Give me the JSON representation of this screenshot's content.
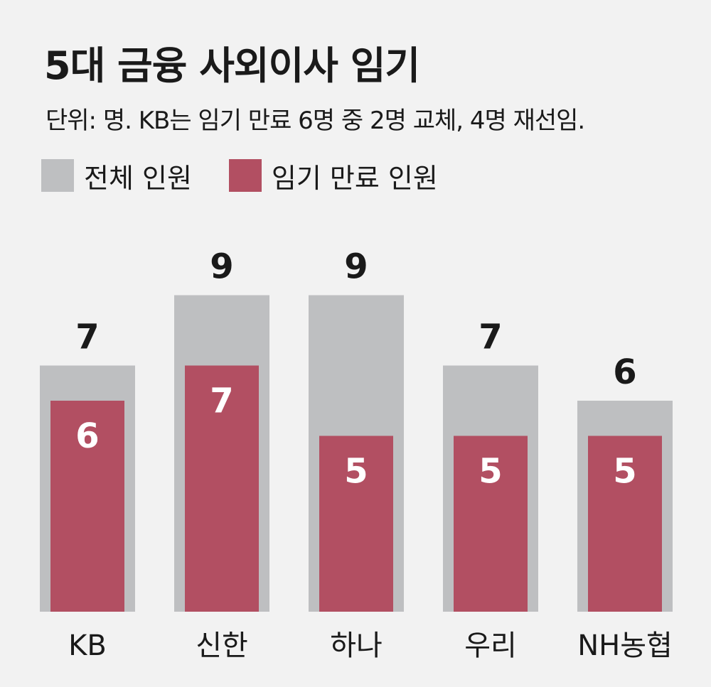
{
  "chart_data": {
    "type": "bar",
    "title": "5대 금융 사외이사 임기",
    "subtitle": "단위: 명. KB는 임기 만료 6명 중 2명 교체, 4명 재선임.",
    "categories": [
      "KB",
      "신한",
      "하나",
      "우리",
      "NH농협"
    ],
    "series": [
      {
        "name": "전체 인원",
        "values": [
          7,
          9,
          9,
          7,
          6
        ],
        "color": "#bebfc1"
      },
      {
        "name": "임기 만료 인원",
        "values": [
          6,
          7,
          5,
          5,
          5
        ],
        "color": "#b24f62"
      }
    ],
    "xlabel": "",
    "ylabel": "",
    "ylim": [
      0,
      9
    ],
    "grid": false,
    "legend": "top-left"
  }
}
